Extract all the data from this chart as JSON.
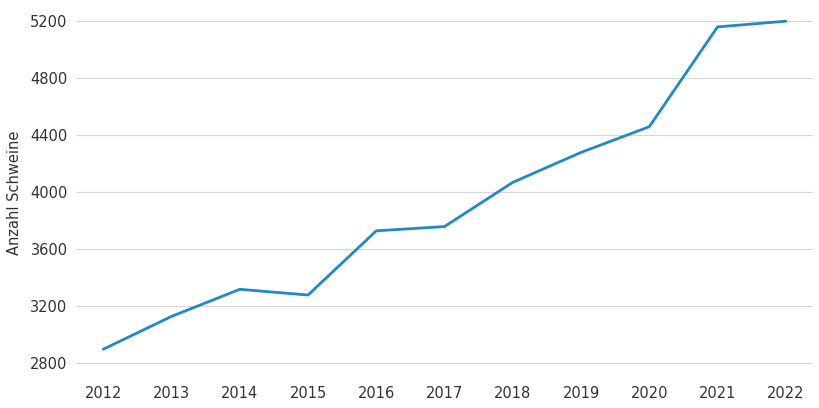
{
  "years": [
    2012,
    2013,
    2014,
    2015,
    2016,
    2017,
    2018,
    2019,
    2020,
    2021,
    2022
  ],
  "values": [
    2900,
    3130,
    3320,
    3280,
    3730,
    3760,
    4070,
    4280,
    4460,
    5160,
    5200
  ],
  "line_color": "#2188c9",
  "line_width": 2.0,
  "ylabel": "Anzahl Schweine",
  "background_color": "#ffffff",
  "ylim": [
    2700,
    5300
  ],
  "yticks": [
    2800,
    3200,
    3600,
    4000,
    4400,
    4800,
    5200
  ],
  "xticks": [
    2012,
    2013,
    2014,
    2015,
    2016,
    2017,
    2018,
    2019,
    2020,
    2021,
    2022
  ],
  "grid_color": "#d8d8d8",
  "grid_alpha": 1.0,
  "grid_linewidth": 0.8,
  "tick_label_fontsize": 10.5,
  "ylabel_fontsize": 10.5,
  "xlim_left": 2011.6,
  "xlim_right": 2022.4
}
